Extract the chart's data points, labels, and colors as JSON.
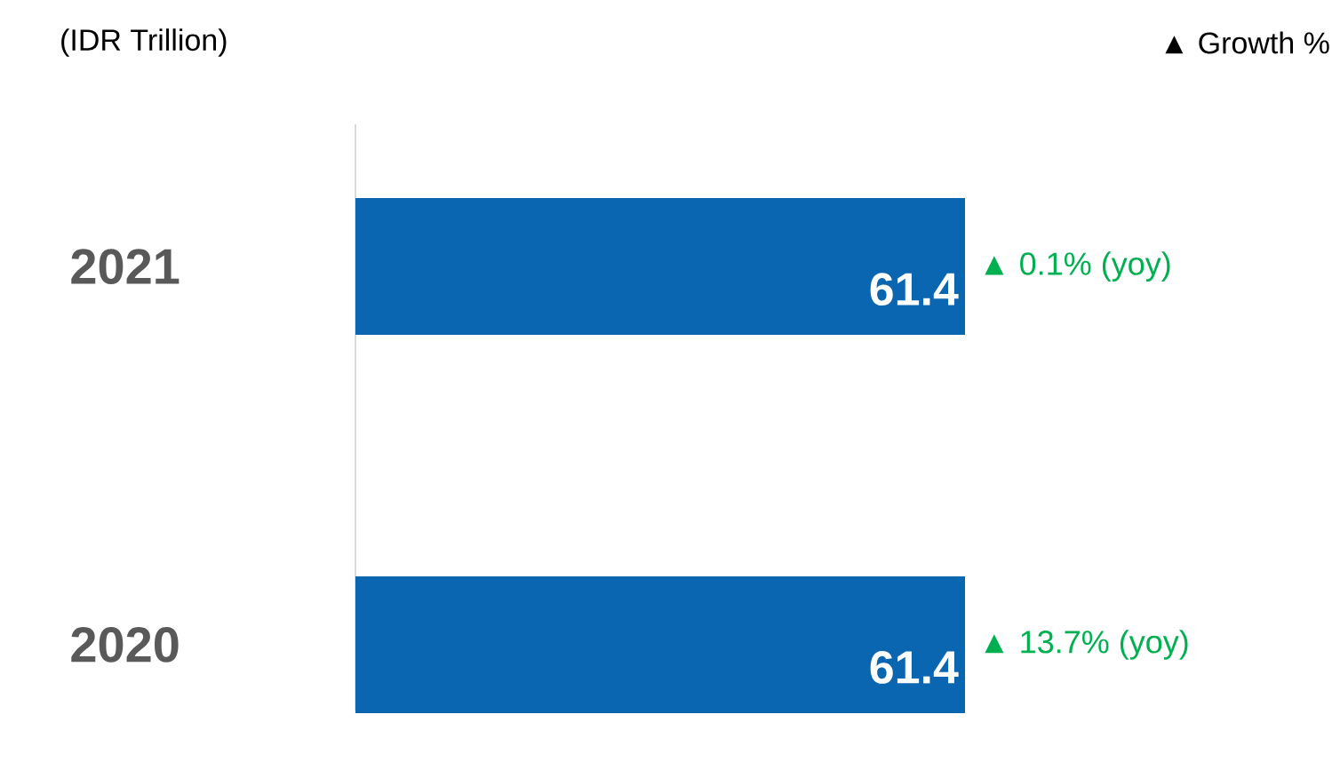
{
  "chart_data": {
    "type": "bar",
    "orientation": "horizontal",
    "ylabel": "(IDR Trillion)",
    "categories": [
      "2021",
      "2020"
    ],
    "values": [
      61.4,
      61.4
    ],
    "value_labels": [
      "61.4",
      "61.4"
    ],
    "color": "#0b66b2",
    "data_labels": true,
    "annotations": [
      "▲ 0.1% (yoy)",
      "▲ 13.7% (yoy)",
      "▲ Growth %"
    ]
  }
}
